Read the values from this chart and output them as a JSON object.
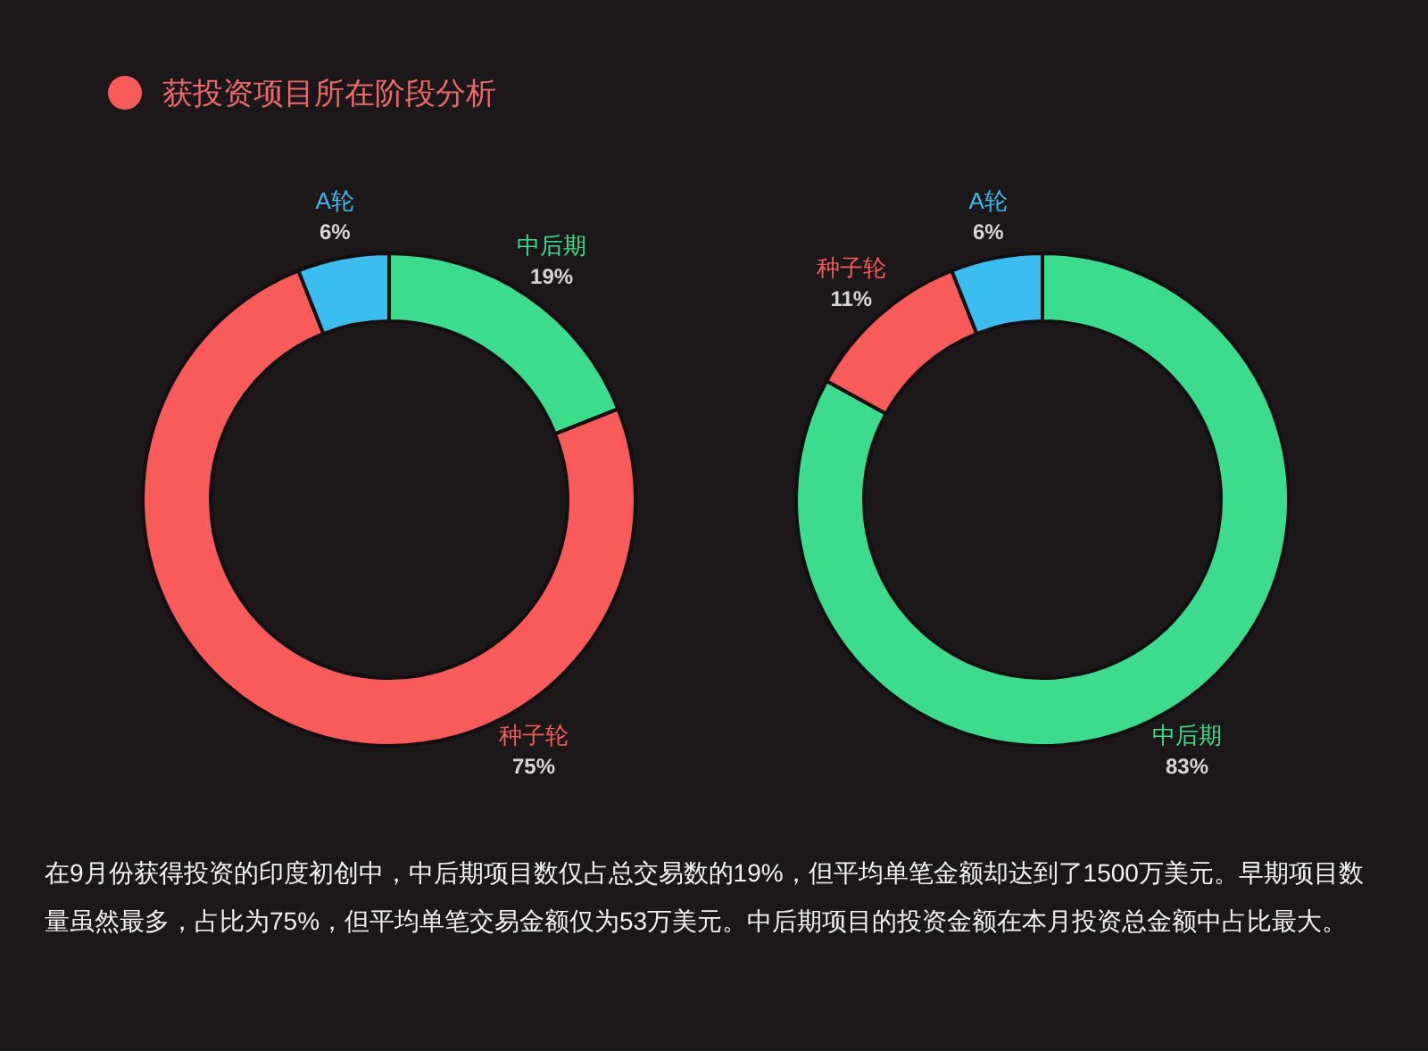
{
  "chart_data": [
    {
      "type": "donut",
      "title": "获投资项目所在阶段分析",
      "categories": [
        "中后期",
        "种子轮",
        "A轮"
      ],
      "values": [
        19,
        75,
        6
      ],
      "colors": [
        "#3ddc8c",
        "#f95b5b",
        "#3cbdf0"
      ],
      "value_labels": [
        "19%",
        "75%",
        "6%"
      ]
    },
    {
      "type": "donut",
      "categories": [
        "中后期",
        "种子轮",
        "A轮"
      ],
      "values": [
        83,
        11,
        6
      ],
      "colors": [
        "#3ddc8c",
        "#f95b5b",
        "#3cbdf0"
      ],
      "value_labels": [
        "83%",
        "11%",
        "6%"
      ],
      "annotations": [
        "在9月份获得投资的印度初创中，中后期项目数仅占总交易数的19%，但平均单笔金额却达到了1500万美元。早期项目数量虽然最多，占比为75%，但平均单笔交易金额仅为53万美元。中后期项目的投资金额在本月投资总金额中占比最大。"
      ]
    }
  ]
}
